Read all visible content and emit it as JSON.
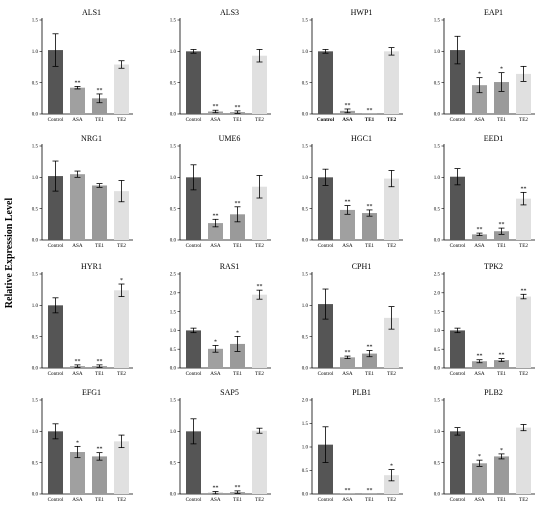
{
  "y_axis_label": "Relative Expression Level",
  "colors": {
    "Control": "#555555",
    "ASA": "#a0a0a0",
    "TE1": "#9a9a9a",
    "TE2": "#e0e0e0"
  },
  "chart_data": [
    {
      "type": "bar",
      "title": "ALS1",
      "categories": [
        "Control",
        "ASA",
        "TE1",
        "TE2"
      ],
      "values": [
        1.02,
        0.42,
        0.25,
        0.79
      ],
      "errors": [
        0.26,
        0.02,
        0.07,
        0.06
      ],
      "significance": [
        "",
        "**",
        "**",
        ""
      ],
      "ylim": [
        0,
        1.5
      ],
      "yticks": [
        "0.0",
        "0.5",
        "1.0",
        "1.5"
      ]
    },
    {
      "type": "bar",
      "title": "ALS3",
      "categories": [
        "Control",
        "ASA",
        "TE1",
        "TE2"
      ],
      "values": [
        1.0,
        0.04,
        0.03,
        0.93
      ],
      "errors": [
        0.03,
        0.02,
        0.02,
        0.1
      ],
      "significance": [
        "",
        "**",
        "**",
        ""
      ],
      "ylim": [
        0,
        1.5
      ],
      "yticks": [
        "0.0",
        "0.5",
        "1.0",
        "1.5"
      ]
    },
    {
      "type": "bar",
      "title": "HWP1",
      "categories": [
        "Control",
        "ASA",
        "TE1",
        "TE2"
      ],
      "values": [
        1.0,
        0.05,
        0.0,
        1.0
      ],
      "errors": [
        0.03,
        0.03,
        0.0,
        0.06
      ],
      "significance": [
        "",
        "**",
        "**",
        ""
      ],
      "ylim": [
        0,
        1.5
      ],
      "yticks": [
        "0.0",
        "0.5",
        "1.0",
        "1.5"
      ],
      "bold_categories": true
    },
    {
      "type": "bar",
      "title": "EAP1",
      "categories": [
        "Control",
        "ASA",
        "TE1",
        "TE2"
      ],
      "values": [
        1.02,
        0.46,
        0.51,
        0.64
      ],
      "errors": [
        0.22,
        0.12,
        0.15,
        0.12
      ],
      "significance": [
        "",
        "*",
        "*",
        ""
      ],
      "ylim": [
        0,
        1.5
      ],
      "yticks": [
        "0.0",
        "0.5",
        "1.0",
        "1.5"
      ]
    },
    {
      "type": "bar",
      "title": "NRG1",
      "categories": [
        "Control",
        "ASA",
        "TE1",
        "TE2"
      ],
      "values": [
        1.02,
        1.05,
        0.87,
        0.78
      ],
      "errors": [
        0.24,
        0.05,
        0.03,
        0.17
      ],
      "significance": [
        "",
        "",
        "",
        ""
      ],
      "ylim": [
        0,
        1.5
      ],
      "yticks": [
        "0.0",
        "0.5",
        "1.0",
        "1.5"
      ]
    },
    {
      "type": "bar",
      "title": "UME6",
      "categories": [
        "Control",
        "ASA",
        "TE1",
        "TE2"
      ],
      "values": [
        1.0,
        0.27,
        0.41,
        0.85
      ],
      "errors": [
        0.2,
        0.06,
        0.12,
        0.18
      ],
      "significance": [
        "",
        "**",
        "**",
        ""
      ],
      "ylim": [
        0,
        1.5
      ],
      "yticks": [
        "0.0",
        "0.5",
        "1.0",
        "1.5"
      ]
    },
    {
      "type": "bar",
      "title": "HGC1",
      "categories": [
        "Control",
        "ASA",
        "TE1",
        "TE2"
      ],
      "values": [
        1.0,
        0.48,
        0.43,
        0.98
      ],
      "errors": [
        0.13,
        0.07,
        0.05,
        0.13
      ],
      "significance": [
        "",
        "**",
        "**",
        ""
      ],
      "ylim": [
        0,
        1.5
      ],
      "yticks": [
        "0.0",
        "0.5",
        "1.0",
        "1.5"
      ]
    },
    {
      "type": "bar",
      "title": "EED1",
      "categories": [
        "Control",
        "ASA",
        "TE1",
        "TE2"
      ],
      "values": [
        1.01,
        0.09,
        0.14,
        0.66
      ],
      "errors": [
        0.13,
        0.02,
        0.05,
        0.1
      ],
      "significance": [
        "",
        "**",
        "**",
        "**"
      ],
      "ylim": [
        0,
        1.5
      ],
      "yticks": [
        "0.0",
        "0.5",
        "1.0",
        "1.5"
      ]
    },
    {
      "type": "bar",
      "title": "HYR1",
      "categories": [
        "Control",
        "ASA",
        "TE1",
        "TE2"
      ],
      "values": [
        1.0,
        0.03,
        0.03,
        1.24
      ],
      "errors": [
        0.12,
        0.02,
        0.02,
        0.1
      ],
      "significance": [
        "",
        "**",
        "**",
        "*"
      ],
      "ylim": [
        0,
        1.5
      ],
      "yticks": [
        "0.0",
        "0.5",
        "1.0",
        "1.5"
      ]
    },
    {
      "type": "bar",
      "title": "RAS1",
      "categories": [
        "Control",
        "ASA",
        "TE1",
        "TE2"
      ],
      "values": [
        1.0,
        0.51,
        0.64,
        1.95
      ],
      "errors": [
        0.06,
        0.09,
        0.2,
        0.12
      ],
      "significance": [
        "",
        "*",
        "*",
        "**"
      ],
      "ylim": [
        0,
        2.5
      ],
      "yticks": [
        "0.0",
        "0.5",
        "1.0",
        "1.5",
        "2.0",
        "2.5"
      ]
    },
    {
      "type": "bar",
      "title": "CPH1",
      "categories": [
        "Control",
        "ASA",
        "TE1",
        "TE2"
      ],
      "values": [
        1.02,
        0.17,
        0.23,
        0.8
      ],
      "errors": [
        0.24,
        0.02,
        0.05,
        0.18
      ],
      "significance": [
        "",
        "**",
        "**",
        ""
      ],
      "ylim": [
        0,
        1.5
      ],
      "yticks": [
        "0.0",
        "0.5",
        "1.0",
        "1.5"
      ]
    },
    {
      "type": "bar",
      "title": "TPK2",
      "categories": [
        "Control",
        "ASA",
        "TE1",
        "TE2"
      ],
      "values": [
        1.0,
        0.18,
        0.21,
        1.9
      ],
      "errors": [
        0.06,
        0.04,
        0.04,
        0.06
      ],
      "significance": [
        "",
        "**",
        "**",
        "**"
      ],
      "ylim": [
        0,
        2.5
      ],
      "yticks": [
        "0.0",
        "0.5",
        "1.0",
        "1.5",
        "2.0",
        "2.5"
      ]
    },
    {
      "type": "bar",
      "title": "EFG1",
      "categories": [
        "Control",
        "ASA",
        "TE1",
        "TE2"
      ],
      "values": [
        1.0,
        0.67,
        0.6,
        0.84
      ],
      "errors": [
        0.12,
        0.09,
        0.06,
        0.1
      ],
      "significance": [
        "",
        "*",
        "**",
        ""
      ],
      "ylim": [
        0,
        1.5
      ],
      "yticks": [
        "0.0",
        "0.5",
        "1.0",
        "1.5"
      ]
    },
    {
      "type": "bar",
      "title": "SAP5",
      "categories": [
        "Control",
        "ASA",
        "TE1",
        "TE2"
      ],
      "values": [
        1.0,
        0.02,
        0.03,
        1.01
      ],
      "errors": [
        0.2,
        0.02,
        0.02,
        0.04
      ],
      "significance": [
        "",
        "**",
        "**",
        ""
      ],
      "ylim": [
        0,
        1.5
      ],
      "yticks": [
        "0.0",
        "0.5",
        "1.0",
        "1.5"
      ]
    },
    {
      "type": "bar",
      "title": "PLB1",
      "categories": [
        "Control",
        "ASA",
        "TE1",
        "TE2"
      ],
      "values": [
        1.05,
        0.0,
        0.0,
        0.4
      ],
      "errors": [
        0.38,
        0.0,
        0.0,
        0.12
      ],
      "significance": [
        "",
        "**",
        "**",
        "*"
      ],
      "ylim": [
        0,
        2.0
      ],
      "yticks": [
        "0.0",
        "0.5",
        "1.0",
        "1.5",
        "2.0"
      ]
    },
    {
      "type": "bar",
      "title": "PLB2",
      "categories": [
        "Control",
        "ASA",
        "TE1",
        "TE2"
      ],
      "values": [
        1.0,
        0.49,
        0.6,
        1.06
      ],
      "errors": [
        0.06,
        0.05,
        0.04,
        0.05
      ],
      "significance": [
        "",
        "*",
        "*",
        ""
      ],
      "ylim": [
        0,
        1.5
      ],
      "yticks": [
        "0.0",
        "0.5",
        "1.0",
        "1.5"
      ]
    }
  ]
}
